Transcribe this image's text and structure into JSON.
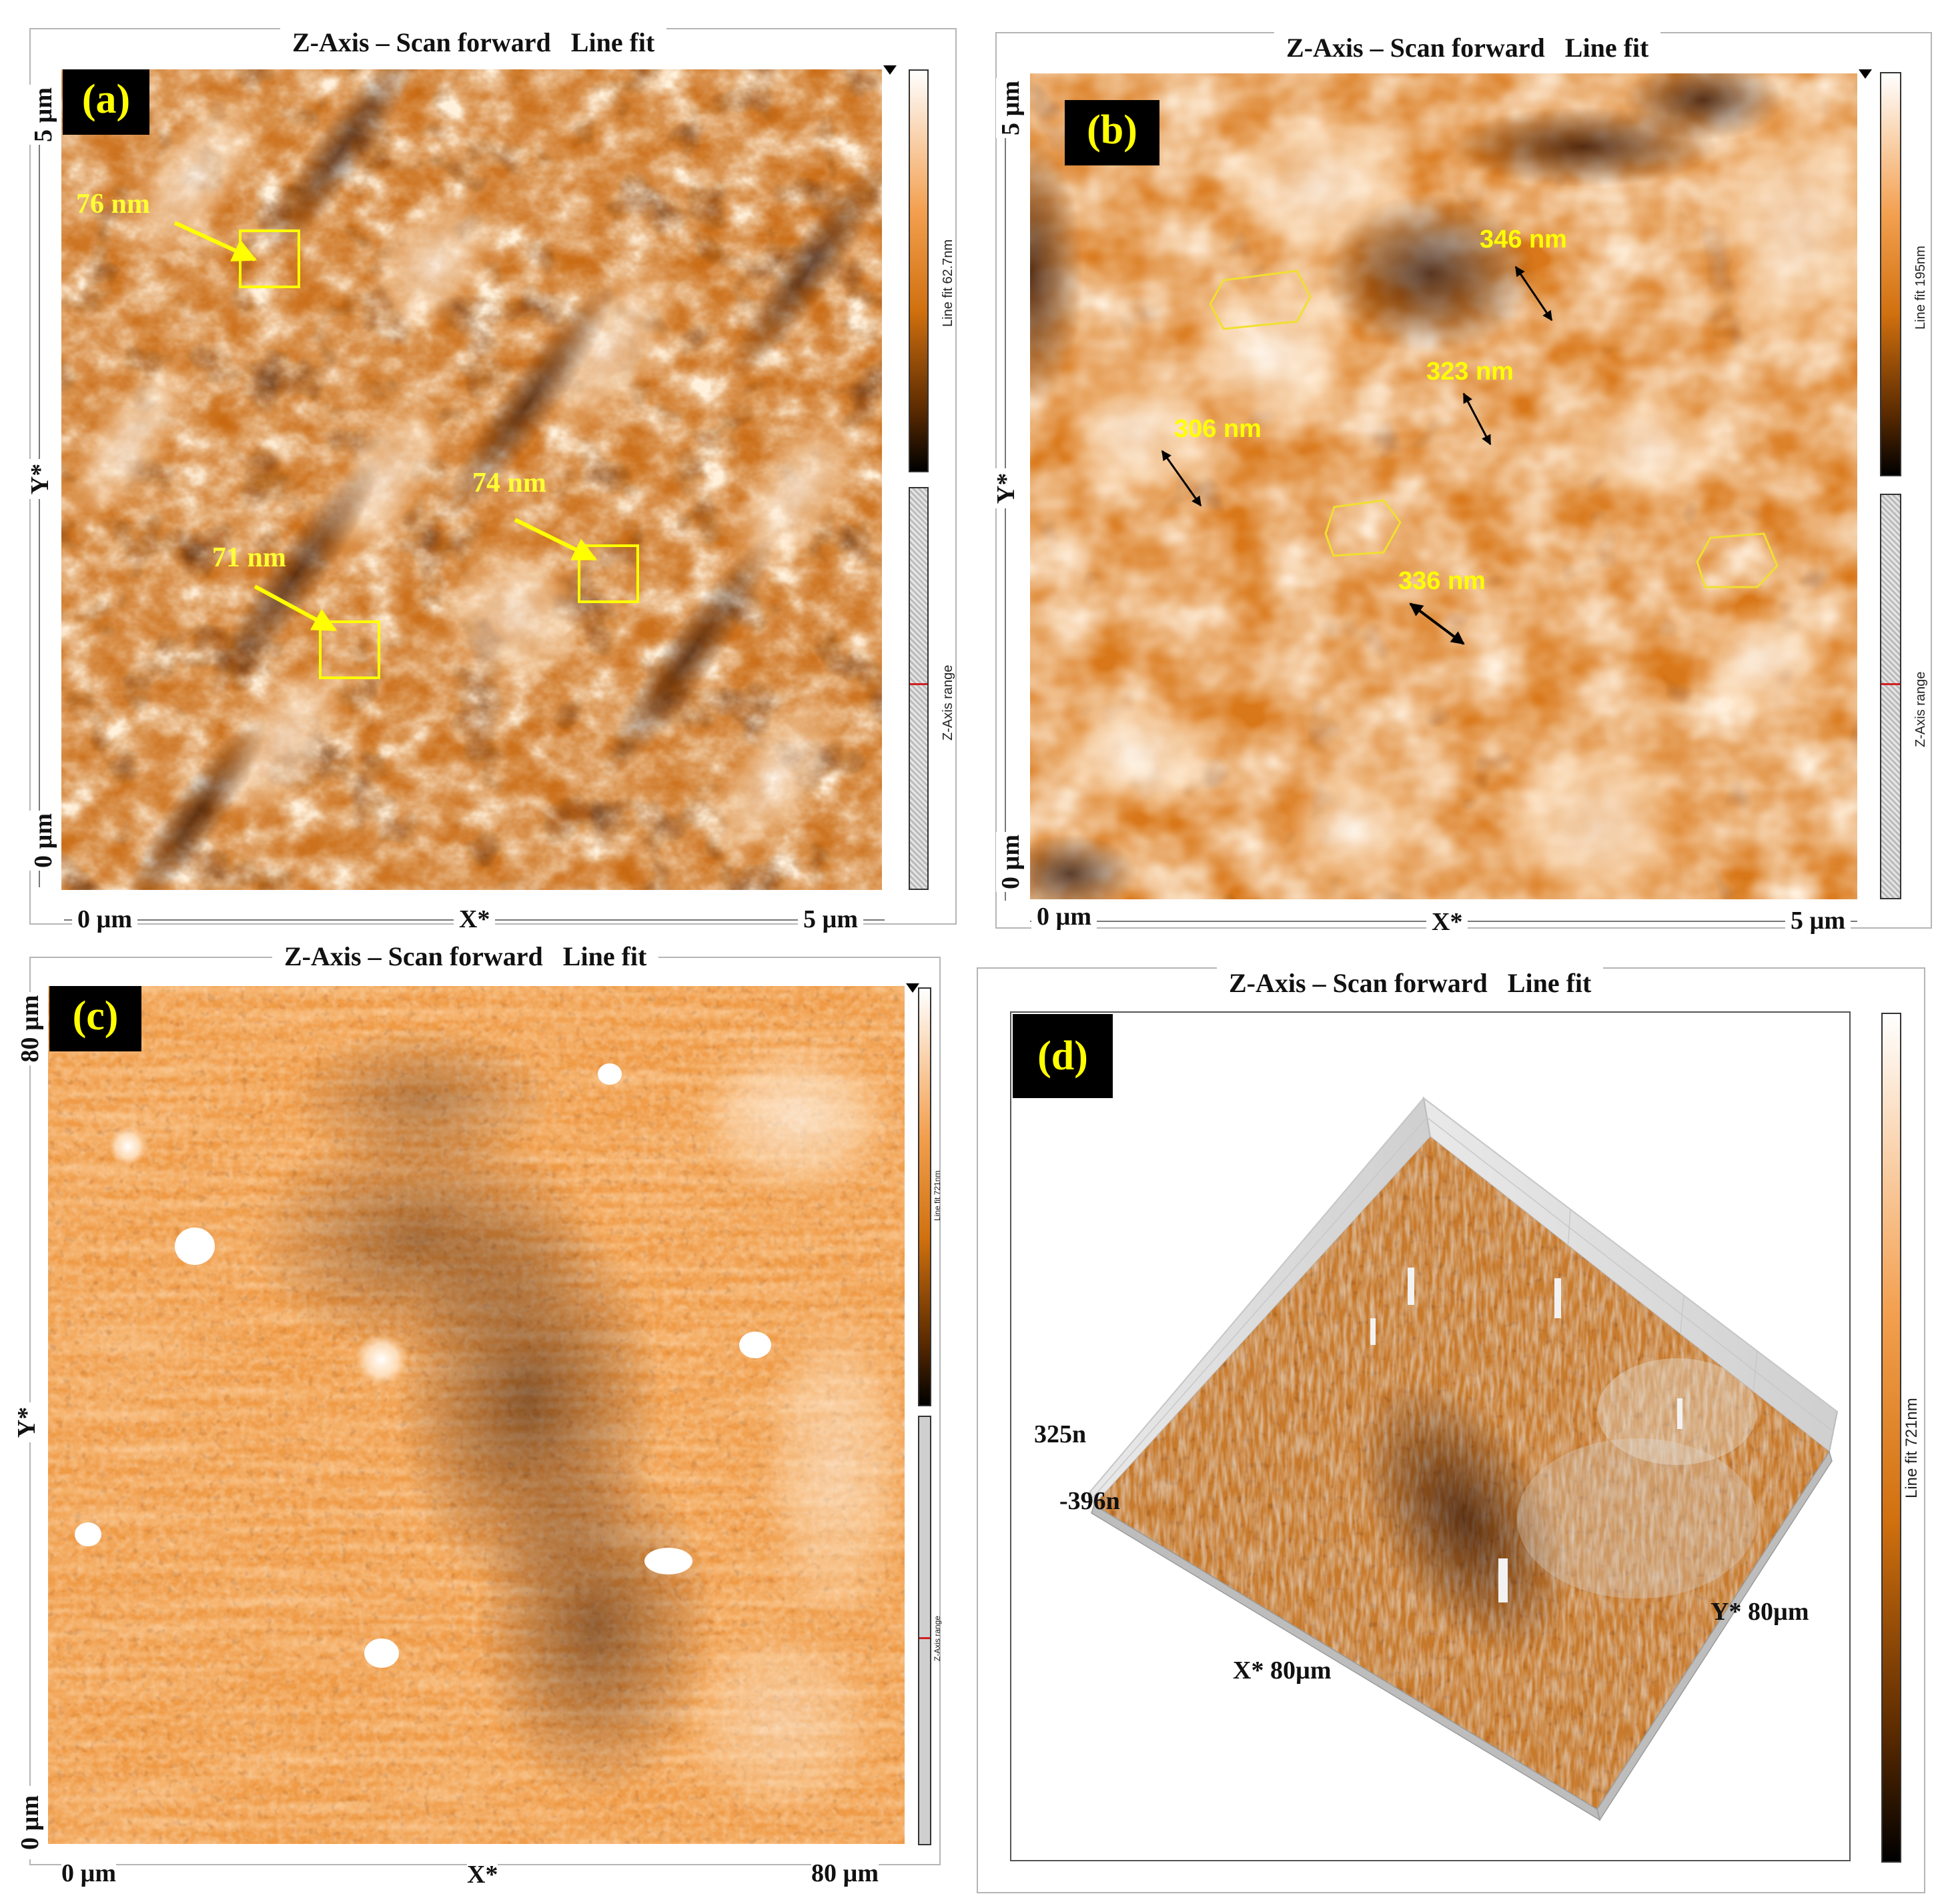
{
  "panels": {
    "a": {
      "title": "Z-Axis – Scan forward   Line fit",
      "badge": "(a)",
      "x_start": "0 µm",
      "x_label": "X*",
      "x_end": "5 µm",
      "y_start": "0 µm",
      "y_label": "Y*",
      "y_end": "5 µm",
      "colorbar_label": "Line fit 62.7nm",
      "range_label": "Z-Axis range",
      "annotations": [
        "76 nm",
        "74 nm",
        "71 nm"
      ]
    },
    "b": {
      "title": "Z-Axis – Scan forward   Line fit",
      "badge": "(b)",
      "x_start": "0 µm",
      "x_label": "X*",
      "x_end": "5 µm",
      "y_start": "0 µm",
      "y_label": "Y*",
      "y_end": "5 µm",
      "colorbar_label": "Line fit 195nm",
      "range_label": "Z-Axis range",
      "annotations": [
        "346 nm",
        "323 nm",
        "306 nm",
        "336 nm"
      ]
    },
    "c": {
      "title": "Z-Axis – Scan forward   Line fit",
      "badge": "(c)",
      "x_start": "0 µm",
      "x_label": "X*",
      "x_end": "80 µm",
      "y_start": "0 µm",
      "y_label": "Y*",
      "y_end": "80 µm",
      "colorbar_label": "Line fit 721nm",
      "range_label": "Z-Axis range"
    },
    "d": {
      "title": "Z-Axis – Scan forward   Line fit",
      "badge": "(d)",
      "z_max": "325n",
      "z_min": "-396n",
      "x_axis": "X* 80µm",
      "y_axis": "Y* 80µm",
      "colorbar_label": "Line fit 721nm"
    }
  },
  "colors": {
    "annotation": "#ffff00",
    "afm_dark": "#1a0a00",
    "afm_mid": "#e07a18",
    "afm_light": "#ffffff"
  }
}
